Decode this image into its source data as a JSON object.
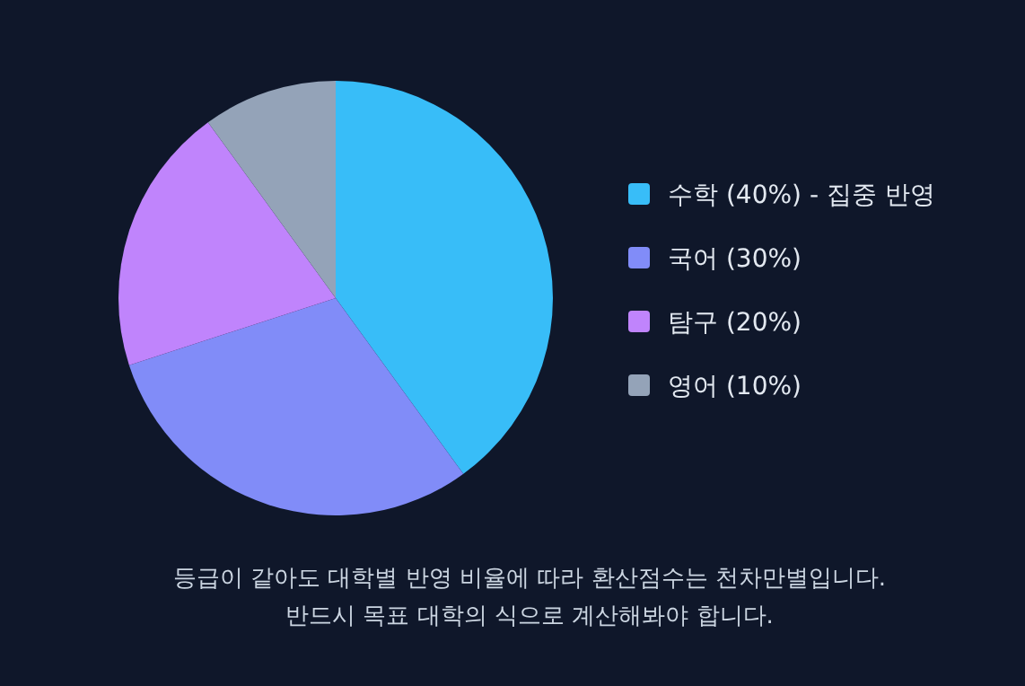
{
  "chart_data": {
    "type": "pie",
    "categories": [
      "수학 (40%) - 집중 반영",
      "국어 (30%)",
      "탐구 (20%)",
      "영어 (10%)"
    ],
    "values": [
      40,
      30,
      20,
      10
    ],
    "colors": [
      "#38bdf8",
      "#818cf8",
      "#c084fc",
      "#94a3b8"
    ],
    "legend": "right",
    "annotations": [
      "등급이 같아도 대학별 반영 비율에 따라 환산점수는 천차만별입니다.",
      "반드시 목표 대학의 식으로 계산해봐야 합니다."
    ]
  }
}
